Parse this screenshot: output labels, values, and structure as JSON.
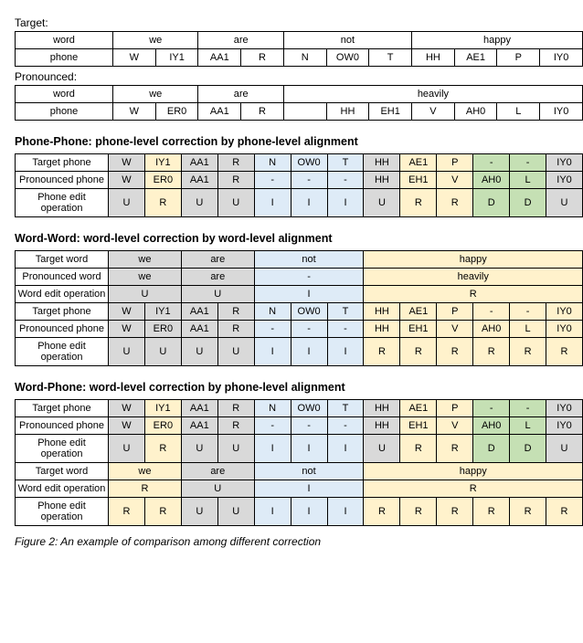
{
  "top": {
    "targetLabel": "Target:",
    "pronouncedLabel": "Pronounced:",
    "rowWord": "word",
    "rowPhone": "phone",
    "target": {
      "words": [
        "we",
        "are",
        "not",
        "happy"
      ],
      "wordSpans": [
        2,
        2,
        3,
        4
      ],
      "phones": [
        "W",
        "IY1",
        "AA1",
        "R",
        "N",
        "OW0",
        "T",
        "HH",
        "AE1",
        "P",
        "IY0"
      ]
    },
    "pronounced": {
      "words": [
        "we",
        "are",
        "heavily"
      ],
      "wordSpans": [
        2,
        2,
        7
      ],
      "phones": [
        "W",
        "ER0",
        "AA1",
        "R",
        "HH",
        "EH1",
        "V",
        "AH0",
        "L",
        "IY0"
      ],
      "blankIndex": 4
    },
    "cols": 11
  },
  "sections": {
    "phonePhone": {
      "title": "Phone-Phone: phone-level correction by phone-level alignment",
      "cols": 13,
      "rows": [
        {
          "name": "targetPhone",
          "label": "Target phone",
          "cells": [
            "W",
            "IY1",
            "AA1",
            "R",
            "N",
            "OW0",
            "T",
            "HH",
            "AE1",
            "P",
            "-",
            "-",
            "IY0"
          ],
          "colors": [
            "gray",
            "yel",
            "gray",
            "gray",
            "blue",
            "blue",
            "blue",
            "gray",
            "yel",
            "yel",
            "grn",
            "grn",
            "gray"
          ]
        },
        {
          "name": "pronPhone",
          "label": "Pronounced phone",
          "cells": [
            "W",
            "ER0",
            "AA1",
            "R",
            "-",
            "-",
            "-",
            "HH",
            "EH1",
            "V",
            "AH0",
            "L",
            "IY0"
          ],
          "colors": [
            "gray",
            "yel",
            "gray",
            "gray",
            "blue",
            "blue",
            "blue",
            "gray",
            "yel",
            "yel",
            "grn",
            "grn",
            "gray"
          ]
        },
        {
          "name": "phoneEdit",
          "label": "Phone edit operation",
          "cells": [
            "U",
            "R",
            "U",
            "U",
            "I",
            "I",
            "I",
            "U",
            "R",
            "R",
            "D",
            "D",
            "U"
          ],
          "colors": [
            "gray",
            "yel",
            "gray",
            "gray",
            "blue",
            "blue",
            "blue",
            "gray",
            "yel",
            "yel",
            "grn",
            "grn",
            "gray"
          ]
        }
      ]
    },
    "wordWord": {
      "title": "Word-Word: word-level correction by word-level alignment",
      "cols": 13,
      "rows": [
        {
          "name": "targetWord",
          "label": "Target word",
          "cells": [
            "we",
            "are",
            "not",
            "happy"
          ],
          "spans": [
            2,
            2,
            3,
            6
          ],
          "colors": [
            "gray",
            "gray",
            "blue",
            "yel"
          ]
        },
        {
          "name": "pronWord",
          "label": "Pronounced word",
          "cells": [
            "we",
            "are",
            "-",
            "heavily"
          ],
          "spans": [
            2,
            2,
            3,
            6
          ],
          "colors": [
            "gray",
            "gray",
            "blue",
            "yel"
          ]
        },
        {
          "name": "wordEdit",
          "label": "Word edit operation",
          "cells": [
            "U",
            "U",
            "I",
            "R"
          ],
          "spans": [
            2,
            2,
            3,
            6
          ],
          "colors": [
            "gray",
            "gray",
            "blue",
            "yel"
          ]
        },
        {
          "name": "targetPhone",
          "label": "Target phone",
          "cells": [
            "W",
            "IY1",
            "AA1",
            "R",
            "N",
            "OW0",
            "T",
            "HH",
            "AE1",
            "P",
            "-",
            "-",
            "IY0"
          ],
          "colors": [
            "gray",
            "gray",
            "gray",
            "gray",
            "blue",
            "blue",
            "blue",
            "yel",
            "yel",
            "yel",
            "yel",
            "yel",
            "yel"
          ]
        },
        {
          "name": "pronPhone",
          "label": "Pronounced phone",
          "cells": [
            "W",
            "ER0",
            "AA1",
            "R",
            "-",
            "-",
            "-",
            "HH",
            "EH1",
            "V",
            "AH0",
            "L",
            "IY0"
          ],
          "colors": [
            "gray",
            "gray",
            "gray",
            "gray",
            "blue",
            "blue",
            "blue",
            "yel",
            "yel",
            "yel",
            "yel",
            "yel",
            "yel"
          ]
        },
        {
          "name": "phoneEdit",
          "label": "Phone edit operation",
          "cells": [
            "U",
            "U",
            "U",
            "U",
            "I",
            "I",
            "I",
            "R",
            "R",
            "R",
            "R",
            "R",
            "R"
          ],
          "colors": [
            "gray",
            "gray",
            "gray",
            "gray",
            "blue",
            "blue",
            "blue",
            "yel",
            "yel",
            "yel",
            "yel",
            "yel",
            "yel"
          ]
        }
      ]
    },
    "wordPhone": {
      "title": "Word-Phone: word-level correction by phone-level alignment",
      "cols": 13,
      "rows": [
        {
          "name": "targetPhone",
          "label": "Target phone",
          "cells": [
            "W",
            "IY1",
            "AA1",
            "R",
            "N",
            "OW0",
            "T",
            "HH",
            "AE1",
            "P",
            "-",
            "-",
            "IY0"
          ],
          "colors": [
            "gray",
            "yel",
            "gray",
            "gray",
            "blue",
            "blue",
            "blue",
            "gray",
            "yel",
            "yel",
            "grn",
            "grn",
            "gray"
          ]
        },
        {
          "name": "pronPhone",
          "label": "Pronounced phone",
          "cells": [
            "W",
            "ER0",
            "AA1",
            "R",
            "-",
            "-",
            "-",
            "HH",
            "EH1",
            "V",
            "AH0",
            "L",
            "IY0"
          ],
          "colors": [
            "gray",
            "yel",
            "gray",
            "gray",
            "blue",
            "blue",
            "blue",
            "gray",
            "yel",
            "yel",
            "grn",
            "grn",
            "gray"
          ]
        },
        {
          "name": "phoneEdit1",
          "label": "Phone edit operation",
          "cells": [
            "U",
            "R",
            "U",
            "U",
            "I",
            "I",
            "I",
            "U",
            "R",
            "R",
            "D",
            "D",
            "U"
          ],
          "colors": [
            "gray",
            "yel",
            "gray",
            "gray",
            "blue",
            "blue",
            "blue",
            "gray",
            "yel",
            "yel",
            "grn",
            "grn",
            "gray"
          ]
        },
        {
          "name": "targetWord",
          "label": "Target word",
          "cells": [
            "we",
            "are",
            "not",
            "happy"
          ],
          "spans": [
            2,
            2,
            3,
            6
          ],
          "colors": [
            "yel",
            "gray",
            "blue",
            "yel"
          ]
        },
        {
          "name": "wordEdit",
          "label": "Word edit operation",
          "cells": [
            "R",
            "U",
            "I",
            "R"
          ],
          "spans": [
            2,
            2,
            3,
            6
          ],
          "colors": [
            "yel",
            "gray",
            "blue",
            "yel"
          ]
        },
        {
          "name": "phoneEdit2",
          "label": "Phone edit operation",
          "cells": [
            "R",
            "R",
            "U",
            "U",
            "I",
            "I",
            "I",
            "R",
            "R",
            "R",
            "R",
            "R",
            "R"
          ],
          "colors": [
            "yel",
            "yel",
            "gray",
            "gray",
            "blue",
            "blue",
            "blue",
            "yel",
            "yel",
            "yel",
            "yel",
            "yel",
            "yel"
          ]
        }
      ]
    }
  },
  "caption": "Figure 2: An example of comparison among different correction"
}
